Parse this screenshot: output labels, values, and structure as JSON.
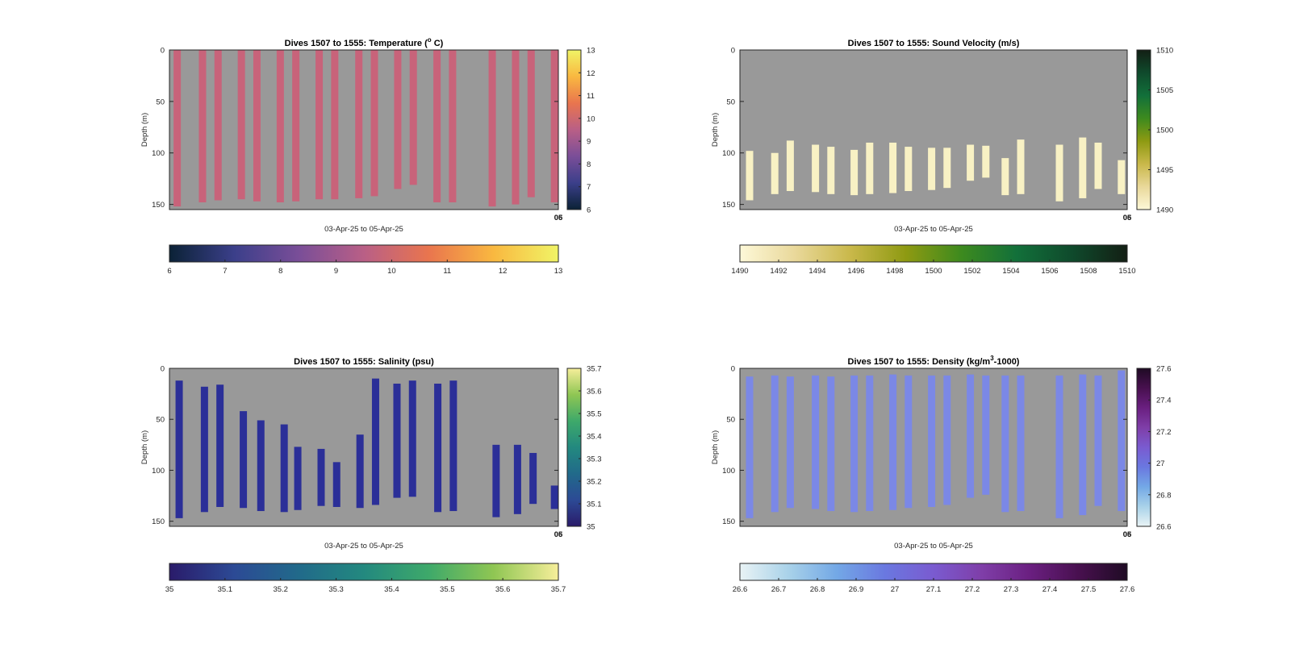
{
  "figure": {
    "background": "#ffffff"
  },
  "chart_data": [
    {
      "type": "heatmap",
      "title": "Dives 1507 to 1555: Temperature (",
      "title_sup": "o",
      "title_tail": " C)",
      "xlabel": "03-Apr-25 to 05-Apr-25",
      "ylabel": "Depth (m)",
      "x_end_labels": [
        "06",
        "05"
      ],
      "ylim": [
        0,
        155
      ],
      "yticks": [
        "0",
        "50",
        "100",
        "150"
      ],
      "background": "#999999",
      "fill_color": "#c8637a",
      "colormap": [
        "#0b2236",
        "#3b3f8a",
        "#7a4e98",
        "#b95f86",
        "#e9754e",
        "#f9b840",
        "#f0f466"
      ],
      "clim": [
        6,
        13
      ],
      "cbar_vertical_ticks": [
        "6",
        "7",
        "8",
        "9",
        "10",
        "11",
        "12",
        "13"
      ],
      "cbar_horizontal_ticks": [
        "6",
        "7",
        "8",
        "9",
        "10",
        "11",
        "12",
        "13"
      ],
      "profiles": [
        {
          "x": 0.02,
          "top": 0,
          "bottom": 152
        },
        {
          "x": 0.085,
          "top": 0,
          "bottom": 148
        },
        {
          "x": 0.125,
          "top": 0,
          "bottom": 146
        },
        {
          "x": 0.185,
          "top": 0,
          "bottom": 145
        },
        {
          "x": 0.225,
          "top": 0,
          "bottom": 147
        },
        {
          "x": 0.285,
          "top": 0,
          "bottom": 148
        },
        {
          "x": 0.325,
          "top": 0,
          "bottom": 147
        },
        {
          "x": 0.385,
          "top": 0,
          "bottom": 145
        },
        {
          "x": 0.425,
          "top": 0,
          "bottom": 145
        },
        {
          "x": 0.487,
          "top": 0,
          "bottom": 144
        },
        {
          "x": 0.527,
          "top": 0,
          "bottom": 142
        },
        {
          "x": 0.587,
          "top": 0,
          "bottom": 135
        },
        {
          "x": 0.627,
          "top": 0,
          "bottom": 131
        },
        {
          "x": 0.688,
          "top": 0,
          "bottom": 148
        },
        {
          "x": 0.728,
          "top": 0,
          "bottom": 148
        },
        {
          "x": 0.83,
          "top": 0,
          "bottom": 152
        },
        {
          "x": 0.89,
          "top": 0,
          "bottom": 150
        },
        {
          "x": 0.93,
          "top": 0,
          "bottom": 143
        },
        {
          "x": 0.99,
          "top": 0,
          "bottom": 148
        }
      ]
    },
    {
      "type": "heatmap",
      "title": "Dives 1507 to 1555: Sound Velocity (m/s)",
      "xlabel": "03-Apr-25 to 05-Apr-25",
      "ylabel": "Depth (m)",
      "x_end_labels": [
        "06",
        "05"
      ],
      "ylim": [
        0,
        155
      ],
      "yticks": [
        "0",
        "50",
        "100",
        "150"
      ],
      "background": "#999999",
      "fill_color": "#f8f1c4",
      "colormap": [
        "#fdf8d8",
        "#e9d89a",
        "#c9b84a",
        "#8e9a12",
        "#3d8a1e",
        "#12703a",
        "#0f4a2c",
        "#131f14"
      ],
      "clim": [
        1490,
        1510
      ],
      "cbar_vertical_ticks": [
        "1490",
        "1495",
        "1500",
        "1505",
        "1510"
      ],
      "cbar_horizontal_ticks": [
        "1490",
        "1492",
        "1494",
        "1496",
        "1498",
        "1500",
        "1502",
        "1504",
        "1506",
        "1508",
        "1510"
      ],
      "profiles": [
        {
          "x": 0.025,
          "top": 98,
          "bottom": 146
        },
        {
          "x": 0.09,
          "top": 100,
          "bottom": 140
        },
        {
          "x": 0.13,
          "top": 88,
          "bottom": 137
        },
        {
          "x": 0.195,
          "top": 92,
          "bottom": 138
        },
        {
          "x": 0.235,
          "top": 94,
          "bottom": 140
        },
        {
          "x": 0.295,
          "top": 97,
          "bottom": 141
        },
        {
          "x": 0.335,
          "top": 90,
          "bottom": 140
        },
        {
          "x": 0.395,
          "top": 90,
          "bottom": 139
        },
        {
          "x": 0.435,
          "top": 94,
          "bottom": 137
        },
        {
          "x": 0.495,
          "top": 95,
          "bottom": 136
        },
        {
          "x": 0.535,
          "top": 95,
          "bottom": 134
        },
        {
          "x": 0.595,
          "top": 92,
          "bottom": 127
        },
        {
          "x": 0.635,
          "top": 93,
          "bottom": 124
        },
        {
          "x": 0.685,
          "top": 105,
          "bottom": 141
        },
        {
          "x": 0.725,
          "top": 87,
          "bottom": 140
        },
        {
          "x": 0.825,
          "top": 92,
          "bottom": 147
        },
        {
          "x": 0.885,
          "top": 85,
          "bottom": 144
        },
        {
          "x": 0.925,
          "top": 90,
          "bottom": 135
        },
        {
          "x": 0.985,
          "top": 107,
          "bottom": 140
        }
      ]
    },
    {
      "type": "heatmap",
      "title": "Dives 1507 to 1555: Salinity (psu)",
      "xlabel": "03-Apr-25 to 05-Apr-25",
      "ylabel": "Depth (m)",
      "x_end_labels": [
        "06",
        "05"
      ],
      "ylim": [
        0,
        155
      ],
      "yticks": [
        "0",
        "50",
        "100",
        "150"
      ],
      "background": "#999999",
      "fill_color": "#2b2f98",
      "colormap": [
        "#2a1b6a",
        "#2c4a95",
        "#216a8a",
        "#23897f",
        "#3ea96a",
        "#8fc653",
        "#f6ee9a"
      ],
      "clim": [
        35,
        35.7
      ],
      "cbar_vertical_ticks": [
        "35",
        "35.1",
        "35.2",
        "35.3",
        "35.4",
        "35.5",
        "35.6",
        "35.7"
      ],
      "cbar_horizontal_ticks": [
        "35",
        "35.1",
        "35.2",
        "35.3",
        "35.4",
        "35.5",
        "35.6",
        "35.7"
      ],
      "profiles": [
        {
          "x": 0.025,
          "top": 12,
          "bottom": 147
        },
        {
          "x": 0.09,
          "top": 18,
          "bottom": 141
        },
        {
          "x": 0.13,
          "top": 16,
          "bottom": 136
        },
        {
          "x": 0.19,
          "top": 42,
          "bottom": 137
        },
        {
          "x": 0.235,
          "top": 51,
          "bottom": 140
        },
        {
          "x": 0.295,
          "top": 55,
          "bottom": 141
        },
        {
          "x": 0.33,
          "top": 77,
          "bottom": 139
        },
        {
          "x": 0.39,
          "top": 79,
          "bottom": 135
        },
        {
          "x": 0.43,
          "top": 92,
          "bottom": 136
        },
        {
          "x": 0.49,
          "top": 65,
          "bottom": 137
        },
        {
          "x": 0.53,
          "top": 10,
          "bottom": 134
        },
        {
          "x": 0.585,
          "top": 15,
          "bottom": 127
        },
        {
          "x": 0.625,
          "top": 12,
          "bottom": 126
        },
        {
          "x": 0.69,
          "top": 15,
          "bottom": 141
        },
        {
          "x": 0.73,
          "top": 12,
          "bottom": 140
        },
        {
          "x": 0.84,
          "top": 75,
          "bottom": 146
        },
        {
          "x": 0.895,
          "top": 75,
          "bottom": 143
        },
        {
          "x": 0.935,
          "top": 83,
          "bottom": 133
        },
        {
          "x": 0.99,
          "top": 115,
          "bottom": 138
        }
      ]
    },
    {
      "type": "heatmap",
      "title": "Dives 1507 to 1555: Density (kg/m",
      "title_sup": "3",
      "title_tail": "-1000)",
      "xlabel": "03-Apr-25 to 05-Apr-25",
      "ylabel": "Depth (m)",
      "x_end_labels": [
        "06",
        "05"
      ],
      "ylim": [
        0,
        155
      ],
      "yticks": [
        "0",
        "50",
        "100",
        "150"
      ],
      "background": "#999999",
      "fill_color": "#7b88e6",
      "colormap": [
        "#e9f3f5",
        "#a9d2e9",
        "#73a8e6",
        "#6a78e0",
        "#7a5bd0",
        "#7f3ea8",
        "#6a1f80",
        "#48104f",
        "#1f0b24"
      ],
      "clim": [
        26.6,
        27.6
      ],
      "cbar_vertical_ticks": [
        "26.6",
        "26.8",
        "27",
        "27.2",
        "27.4",
        "27.6"
      ],
      "cbar_horizontal_ticks": [
        "26.6",
        "26.7",
        "26.8",
        "26.9",
        "27",
        "27.1",
        "27.2",
        "27.3",
        "27.4",
        "27.5",
        "27.6"
      ],
      "profiles": [
        {
          "x": 0.025,
          "top": 8,
          "bottom": 147
        },
        {
          "x": 0.09,
          "top": 7,
          "bottom": 141
        },
        {
          "x": 0.13,
          "top": 8,
          "bottom": 137
        },
        {
          "x": 0.195,
          "top": 7,
          "bottom": 138
        },
        {
          "x": 0.235,
          "top": 8,
          "bottom": 140
        },
        {
          "x": 0.295,
          "top": 7,
          "bottom": 141
        },
        {
          "x": 0.335,
          "top": 7,
          "bottom": 140
        },
        {
          "x": 0.395,
          "top": 6,
          "bottom": 139
        },
        {
          "x": 0.435,
          "top": 7,
          "bottom": 137
        },
        {
          "x": 0.495,
          "top": 7,
          "bottom": 136
        },
        {
          "x": 0.535,
          "top": 7,
          "bottom": 134
        },
        {
          "x": 0.595,
          "top": 6,
          "bottom": 127
        },
        {
          "x": 0.635,
          "top": 7,
          "bottom": 124
        },
        {
          "x": 0.685,
          "top": 7,
          "bottom": 141
        },
        {
          "x": 0.725,
          "top": 7,
          "bottom": 140
        },
        {
          "x": 0.825,
          "top": 7,
          "bottom": 147
        },
        {
          "x": 0.885,
          "top": 6,
          "bottom": 144
        },
        {
          "x": 0.925,
          "top": 7,
          "bottom": 135
        },
        {
          "x": 0.985,
          "top": 2,
          "bottom": 140
        }
      ]
    }
  ]
}
